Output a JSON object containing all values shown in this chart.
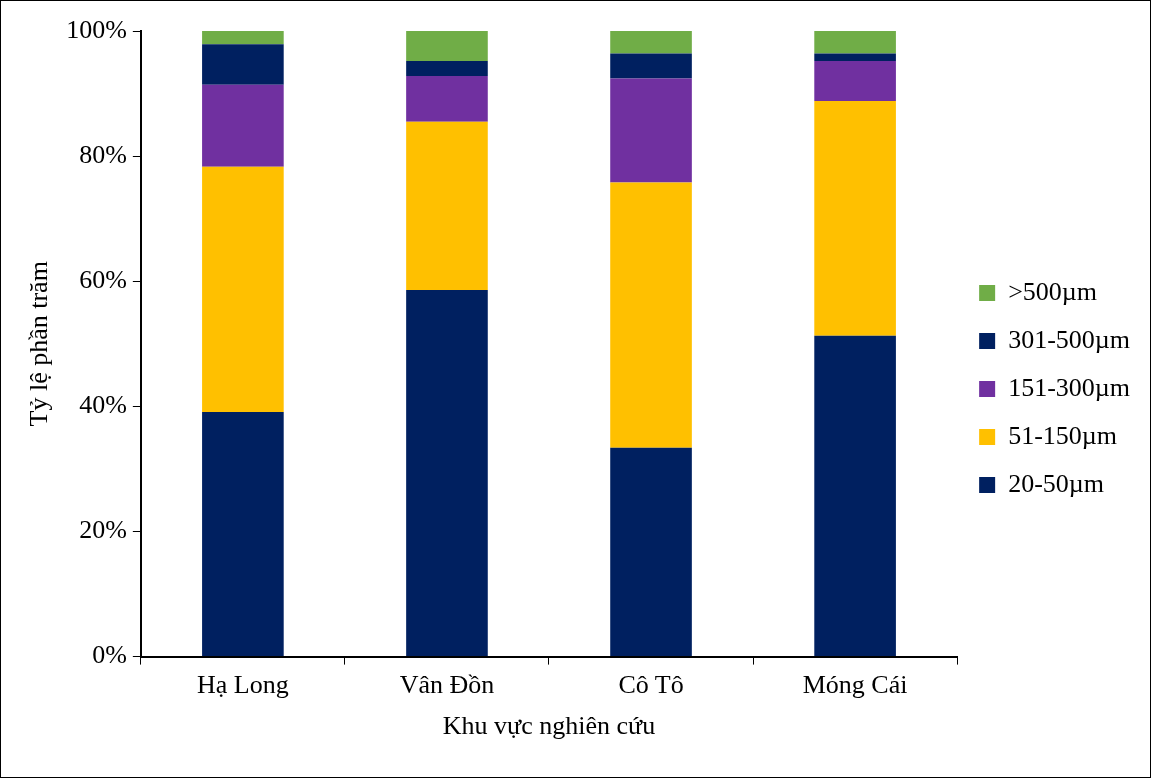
{
  "chart_data": {
    "type": "bar",
    "stacked": true,
    "xlabel": "Khu vực nghiên cứu",
    "ylabel": "Tỷ lệ phần trăm",
    "categories": [
      "Hạ Long",
      "Vân Đồn",
      "Cô Tô",
      "Móng Cái"
    ],
    "series": [
      {
        "name": "20-50µm",
        "color": "#002060",
        "values": [
          39.1,
          58.6,
          33.4,
          51.3
        ]
      },
      {
        "name": "51-150µm",
        "color": "#ffc000",
        "values": [
          39.2,
          26.9,
          42.4,
          37.5
        ]
      },
      {
        "name": "151-300µm",
        "color": "#7030a0",
        "values": [
          13.1,
          7.3,
          16.6,
          6.4
        ]
      },
      {
        "name": "301-500µm",
        "color": "#002060",
        "values": [
          6.5,
          2.4,
          4.0,
          1.2
        ]
      },
      {
        "name": ">500µm",
        "color": "#70ad47",
        "values": [
          2.1,
          4.8,
          3.6,
          3.6
        ]
      }
    ],
    "ylim": [
      0,
      100
    ],
    "yticks": [
      {
        "value": 0,
        "label": "0%"
      },
      {
        "value": 20,
        "label": "20%"
      },
      {
        "value": 40,
        "label": "40%"
      },
      {
        "value": 60,
        "label": "60%"
      },
      {
        "value": 80,
        "label": "80%"
      },
      {
        "value": 100,
        "label": "100%"
      }
    ],
    "grid": false,
    "legend": "right"
  }
}
